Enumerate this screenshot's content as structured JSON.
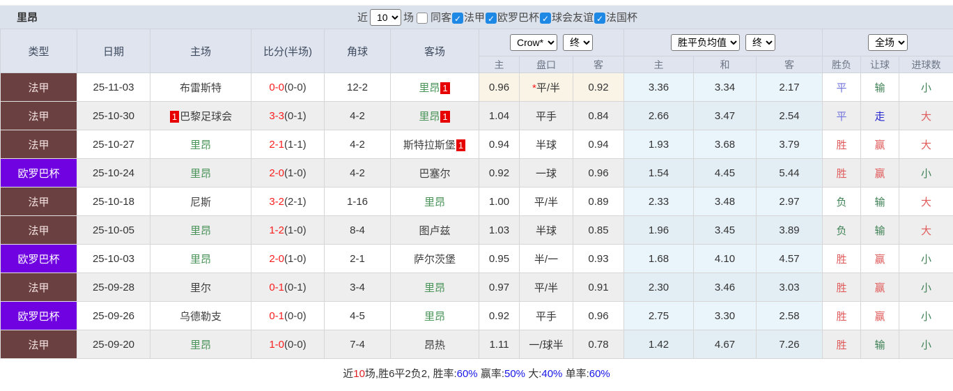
{
  "title": "里昂",
  "topbar": {
    "near_label": "近",
    "count_value": "10",
    "games_label": "场",
    "checkboxes": [
      {
        "label": "同客",
        "checked": false
      },
      {
        "label": "法甲",
        "checked": true
      },
      {
        "label": "欧罗巴杯",
        "checked": true
      },
      {
        "label": "球会友谊",
        "checked": true
      },
      {
        "label": "法国杯",
        "checked": true
      }
    ]
  },
  "table": {
    "main_headers": [
      "类型",
      "日期",
      "主场",
      "比分(半场)",
      "角球",
      "客场"
    ],
    "groups": [
      {
        "selects": [
          "Crow*",
          "终"
        ],
        "subcols": [
          "主",
          "盘口",
          "客"
        ]
      },
      {
        "selects": [
          "胜平负均值",
          "终"
        ],
        "subcols": [
          "主",
          "和",
          "客"
        ]
      },
      {
        "selects": [
          "全场"
        ],
        "subcols": [
          "胜负",
          "让球",
          "进球数"
        ]
      }
    ],
    "rows": [
      {
        "league": "法甲",
        "league_color": "maroon",
        "date": "25-11-03",
        "home": {
          "name": "布雷斯特",
          "green": false,
          "badge_before": "",
          "badge_after": ""
        },
        "score": "0-0",
        "half": "(0-0)",
        "corners": "12-2",
        "away": {
          "name": "里昂",
          "green": true,
          "badge_before": "",
          "badge_after": "1"
        },
        "odds": {
          "home": "0.96",
          "star": true,
          "line": "平/半",
          "away": "0.92"
        },
        "crow_highlight": true,
        "avg": {
          "home": "3.36",
          "draw": "3.34",
          "away": "2.17"
        },
        "result": {
          "outcome": {
            "text": "平",
            "c": "blue"
          },
          "handicap": {
            "text": "输",
            "c": "green"
          },
          "goals": {
            "text": "小",
            "c": "green"
          }
        }
      },
      {
        "league": "法甲",
        "league_color": "maroon",
        "date": "25-10-30",
        "home": {
          "name": "巴黎足球会",
          "green": false,
          "badge_before": "1",
          "badge_after": ""
        },
        "score": "3-3",
        "half": "(0-1)",
        "corners": "4-2",
        "away": {
          "name": "里昂",
          "green": true,
          "badge_before": "",
          "badge_after": "1"
        },
        "odds": {
          "home": "1.04",
          "star": false,
          "line": "平手",
          "away": "0.84"
        },
        "crow_highlight": false,
        "avg": {
          "home": "2.66",
          "draw": "3.47",
          "away": "2.54"
        },
        "result": {
          "outcome": {
            "text": "平",
            "c": "blue"
          },
          "handicap": {
            "text": "走",
            "c": "dblue"
          },
          "goals": {
            "text": "大",
            "c": "red"
          }
        }
      },
      {
        "league": "法甲",
        "league_color": "maroon",
        "date": "25-10-27",
        "home": {
          "name": "里昂",
          "green": true,
          "badge_before": "",
          "badge_after": ""
        },
        "score": "2-1",
        "half": "(1-1)",
        "corners": "4-2",
        "away": {
          "name": "斯特拉斯堡",
          "green": false,
          "badge_before": "",
          "badge_after": "1"
        },
        "odds": {
          "home": "0.94",
          "star": false,
          "line": "半球",
          "away": "0.94"
        },
        "crow_highlight": false,
        "avg": {
          "home": "1.93",
          "draw": "3.68",
          "away": "3.79"
        },
        "result": {
          "outcome": {
            "text": "胜",
            "c": "red"
          },
          "handicap": {
            "text": "赢",
            "c": "red"
          },
          "goals": {
            "text": "大",
            "c": "red"
          }
        }
      },
      {
        "league": "欧罗巴杯",
        "league_color": "purple",
        "date": "25-10-24",
        "home": {
          "name": "里昂",
          "green": true,
          "badge_before": "",
          "badge_after": ""
        },
        "score": "2-0",
        "half": "(1-0)",
        "corners": "4-2",
        "away": {
          "name": "巴塞尔",
          "green": false,
          "badge_before": "",
          "badge_after": ""
        },
        "odds": {
          "home": "0.92",
          "star": false,
          "line": "一球",
          "away": "0.96"
        },
        "crow_highlight": false,
        "avg": {
          "home": "1.54",
          "draw": "4.45",
          "away": "5.44"
        },
        "result": {
          "outcome": {
            "text": "胜",
            "c": "red"
          },
          "handicap": {
            "text": "赢",
            "c": "red"
          },
          "goals": {
            "text": "小",
            "c": "green"
          }
        }
      },
      {
        "league": "法甲",
        "league_color": "maroon",
        "date": "25-10-18",
        "home": {
          "name": "尼斯",
          "green": false,
          "badge_before": "",
          "badge_after": ""
        },
        "score": "3-2",
        "half": "(2-1)",
        "corners": "1-16",
        "away": {
          "name": "里昂",
          "green": true,
          "badge_before": "",
          "badge_after": ""
        },
        "odds": {
          "home": "1.00",
          "star": false,
          "line": "平/半",
          "away": "0.89"
        },
        "crow_highlight": false,
        "avg": {
          "home": "2.33",
          "draw": "3.48",
          "away": "2.97"
        },
        "result": {
          "outcome": {
            "text": "负",
            "c": "green"
          },
          "handicap": {
            "text": "输",
            "c": "green"
          },
          "goals": {
            "text": "大",
            "c": "red"
          }
        }
      },
      {
        "league": "法甲",
        "league_color": "maroon",
        "date": "25-10-05",
        "home": {
          "name": "里昂",
          "green": true,
          "badge_before": "",
          "badge_after": ""
        },
        "score": "1-2",
        "half": "(1-0)",
        "corners": "8-4",
        "away": {
          "name": "图卢兹",
          "green": false,
          "badge_before": "",
          "badge_after": ""
        },
        "odds": {
          "home": "1.03",
          "star": false,
          "line": "半球",
          "away": "0.85"
        },
        "crow_highlight": false,
        "avg": {
          "home": "1.96",
          "draw": "3.45",
          "away": "3.89"
        },
        "result": {
          "outcome": {
            "text": "负",
            "c": "green"
          },
          "handicap": {
            "text": "输",
            "c": "green"
          },
          "goals": {
            "text": "大",
            "c": "red"
          }
        }
      },
      {
        "league": "欧罗巴杯",
        "league_color": "purple",
        "date": "25-10-03",
        "home": {
          "name": "里昂",
          "green": true,
          "badge_before": "",
          "badge_after": ""
        },
        "score": "2-0",
        "half": "(1-0)",
        "corners": "2-1",
        "away": {
          "name": "萨尔茨堡",
          "green": false,
          "badge_before": "",
          "badge_after": ""
        },
        "odds": {
          "home": "0.95",
          "star": false,
          "line": "半/一",
          "away": "0.93"
        },
        "crow_highlight": false,
        "avg": {
          "home": "1.68",
          "draw": "4.10",
          "away": "4.57"
        },
        "result": {
          "outcome": {
            "text": "胜",
            "c": "red"
          },
          "handicap": {
            "text": "赢",
            "c": "red"
          },
          "goals": {
            "text": "小",
            "c": "green"
          }
        }
      },
      {
        "league": "法甲",
        "league_color": "maroon",
        "date": "25-09-28",
        "home": {
          "name": "里尔",
          "green": false,
          "badge_before": "",
          "badge_after": ""
        },
        "score": "0-1",
        "half": "(0-1)",
        "corners": "3-4",
        "away": {
          "name": "里昂",
          "green": true,
          "badge_before": "",
          "badge_after": ""
        },
        "odds": {
          "home": "0.97",
          "star": false,
          "line": "平/半",
          "away": "0.91"
        },
        "crow_highlight": false,
        "avg": {
          "home": "2.30",
          "draw": "3.46",
          "away": "3.03"
        },
        "result": {
          "outcome": {
            "text": "胜",
            "c": "red"
          },
          "handicap": {
            "text": "赢",
            "c": "red"
          },
          "goals": {
            "text": "小",
            "c": "green"
          }
        }
      },
      {
        "league": "欧罗巴杯",
        "league_color": "purple",
        "date": "25-09-26",
        "home": {
          "name": "乌德勒支",
          "green": false,
          "badge_before": "",
          "badge_after": ""
        },
        "score": "0-1",
        "half": "(0-0)",
        "corners": "4-5",
        "away": {
          "name": "里昂",
          "green": true,
          "badge_before": "",
          "badge_after": ""
        },
        "odds": {
          "home": "0.92",
          "star": false,
          "line": "平手",
          "away": "0.96"
        },
        "crow_highlight": false,
        "avg": {
          "home": "2.75",
          "draw": "3.30",
          "away": "2.58"
        },
        "result": {
          "outcome": {
            "text": "胜",
            "c": "red"
          },
          "handicap": {
            "text": "赢",
            "c": "red"
          },
          "goals": {
            "text": "小",
            "c": "green"
          }
        }
      },
      {
        "league": "法甲",
        "league_color": "maroon",
        "date": "25-09-20",
        "home": {
          "name": "里昂",
          "green": true,
          "badge_before": "",
          "badge_after": ""
        },
        "score": "1-0",
        "half": "(0-0)",
        "corners": "7-4",
        "away": {
          "name": "昂热",
          "green": false,
          "badge_before": "",
          "badge_after": ""
        },
        "odds": {
          "home": "1.11",
          "star": false,
          "line": "一/球半",
          "away": "0.78"
        },
        "crow_highlight": false,
        "avg": {
          "home": "1.42",
          "draw": "4.67",
          "away": "7.26"
        },
        "result": {
          "outcome": {
            "text": "胜",
            "c": "red"
          },
          "handicap": {
            "text": "输",
            "c": "green"
          },
          "goals": {
            "text": "小",
            "c": "green"
          }
        }
      }
    ]
  },
  "footer": {
    "segments": [
      {
        "text": "近",
        "c": "dark"
      },
      {
        "text": "10",
        "c": "red"
      },
      {
        "text": "场,胜6平2负2, 胜率:",
        "c": "dark"
      },
      {
        "text": "60%",
        "c": "blue"
      },
      {
        "text": " 赢率:",
        "c": "dark"
      },
      {
        "text": "50%",
        "c": "blue"
      },
      {
        "text": " 大:",
        "c": "dark"
      },
      {
        "text": "40%",
        "c": "blue"
      },
      {
        "text": " 单率:",
        "c": "dark"
      },
      {
        "text": "60%",
        "c": "blue"
      }
    ]
  },
  "colors": {
    "topbar_bg": "#dbe2ec",
    "header_bg": "#dfe4ee",
    "ligue1_badge": "#6b4040",
    "europa_badge": "#7001e0",
    "card_badge": "#e60000",
    "score_red": "#fa1e1e",
    "lyon_green": "#4a9459",
    "result_red": "#e05c5c",
    "result_green": "#3f8155",
    "result_blue": "#7173dc",
    "result_dark_blue": "#2323cf",
    "footer_blue": "#1717e6",
    "avg_col_bg": "#eaf4fb",
    "crow_highlight_bg": "#faf4e6",
    "checkbox_blue": "#1e88e5"
  }
}
